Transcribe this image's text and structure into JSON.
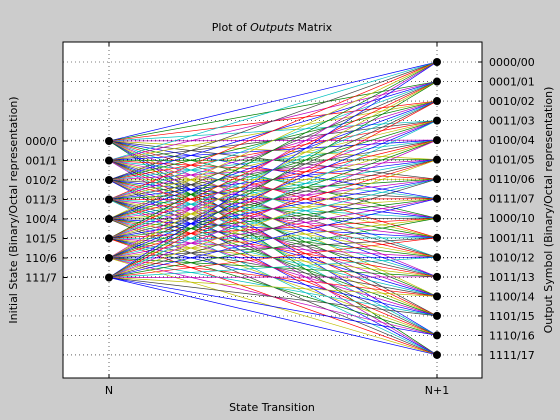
{
  "chart_data": {
    "type": "line",
    "title_prefix": "Plot of ",
    "title_italic": "Outputs",
    "title_suffix": " Matrix",
    "xlabel": "State Transition",
    "ylabel_left": "Initial State (Binary/Octal representation)",
    "ylabel_right": "Output Symbol (Binary/Octal representation)",
    "x_ticks": [
      "N",
      "N+1"
    ],
    "left_ticks": [
      "000/0",
      "001/1",
      "010/2",
      "011/3",
      "100/4",
      "101/5",
      "110/6",
      "111/7"
    ],
    "right_ticks": [
      "0000/00",
      "0001/01",
      "0010/02",
      "0011/03",
      "0100/04",
      "0101/05",
      "0110/06",
      "0111/07",
      "1000/10",
      "1001/11",
      "1010/12",
      "1011/13",
      "1100/14",
      "1101/15",
      "1110/16",
      "1111/17"
    ],
    "grid": true,
    "series_colors": [
      "#0000ff",
      "#008000",
      "#ff0000",
      "#00bfbf",
      "#bf00bf",
      "#bfbf00",
      "#404040",
      "#0000ff"
    ],
    "edge_colors": [
      "#0000ff",
      "#008000",
      "#ff0000",
      "#00bfbf",
      "#bf00bf",
      "#bfbf00",
      "#404040"
    ]
  }
}
